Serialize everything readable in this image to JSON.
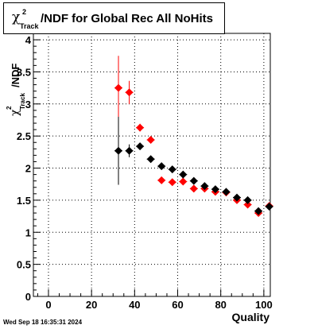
{
  "title": {
    "symbol": "χ",
    "superscript": "2",
    "subscript": "Track",
    "text": "/NDF for Global Rec All NoHits"
  },
  "timestamp": "Wed Sep 18 16:35:31 2024",
  "chart_data": {
    "type": "scatter",
    "xlabel": "Quality",
    "ylabel": {
      "symbol": "χ",
      "superscript": "2",
      "subscript": "Track",
      "text": "/NDF"
    },
    "xlim": [
      -7,
      103
    ],
    "ylim": [
      0,
      4.1
    ],
    "x_ticks": [
      0,
      20,
      40,
      60,
      80,
      100
    ],
    "x_tick_labels": [
      "0",
      "20",
      "40",
      "60",
      "80",
      "100"
    ],
    "y_ticks": [
      0,
      0.5,
      1,
      1.5,
      2,
      2.5,
      3,
      3.5,
      4
    ],
    "y_tick_labels": [
      "0",
      "0.5",
      "1",
      "1.5",
      "2",
      "2.5",
      "3",
      "3.5",
      "4"
    ],
    "grid": true,
    "series": [
      {
        "color": "#ff0000",
        "points": [
          {
            "x": 32.5,
            "y": 3.25,
            "yerr": 0.5
          },
          {
            "x": 37.5,
            "y": 3.18,
            "yerr": 0.18
          },
          {
            "x": 42.5,
            "y": 2.63,
            "yerr": 0.06
          },
          {
            "x": 47.5,
            "y": 2.44,
            "yerr": 0.03
          },
          {
            "x": 52.5,
            "y": 1.81,
            "yerr": 0.02
          },
          {
            "x": 57.5,
            "y": 1.78,
            "yerr": 0.02
          },
          {
            "x": 62.5,
            "y": 1.79,
            "yerr": 0.02
          },
          {
            "x": 67.5,
            "y": 1.68,
            "yerr": 0.02
          },
          {
            "x": 72.5,
            "y": 1.68,
            "yerr": 0.02
          },
          {
            "x": 77.5,
            "y": 1.63,
            "yerr": 0.02
          },
          {
            "x": 82.5,
            "y": 1.62,
            "yerr": 0.02
          },
          {
            "x": 87.5,
            "y": 1.5,
            "yerr": 0.02
          },
          {
            "x": 92.5,
            "y": 1.43,
            "yerr": 0.02
          },
          {
            "x": 97.5,
            "y": 1.3,
            "yerr": 0.02
          },
          {
            "x": 102.5,
            "y": 1.41,
            "yerr": 0.02
          }
        ]
      },
      {
        "color": "#000000",
        "points": [
          {
            "x": 32.5,
            "y": 2.27,
            "yerr": 0.53
          },
          {
            "x": 37.5,
            "y": 2.27,
            "yerr": 0.1
          },
          {
            "x": 42.5,
            "y": 2.34,
            "yerr": 0.04
          },
          {
            "x": 47.5,
            "y": 2.14,
            "yerr": 0.03
          },
          {
            "x": 52.5,
            "y": 2.03,
            "yerr": 0.02
          },
          {
            "x": 57.5,
            "y": 1.98,
            "yerr": 0.02
          },
          {
            "x": 62.5,
            "y": 1.9,
            "yerr": 0.02
          },
          {
            "x": 67.5,
            "y": 1.8,
            "yerr": 0.02
          },
          {
            "x": 72.5,
            "y": 1.72,
            "yerr": 0.02
          },
          {
            "x": 77.5,
            "y": 1.67,
            "yerr": 0.02
          },
          {
            "x": 82.5,
            "y": 1.63,
            "yerr": 0.02
          },
          {
            "x": 87.5,
            "y": 1.54,
            "yerr": 0.02
          },
          {
            "x": 92.5,
            "y": 1.5,
            "yerr": 0.02
          },
          {
            "x": 97.5,
            "y": 1.33,
            "yerr": 0.02
          },
          {
            "x": 102.5,
            "y": 1.4,
            "yerr": 0.02
          }
        ]
      }
    ]
  }
}
